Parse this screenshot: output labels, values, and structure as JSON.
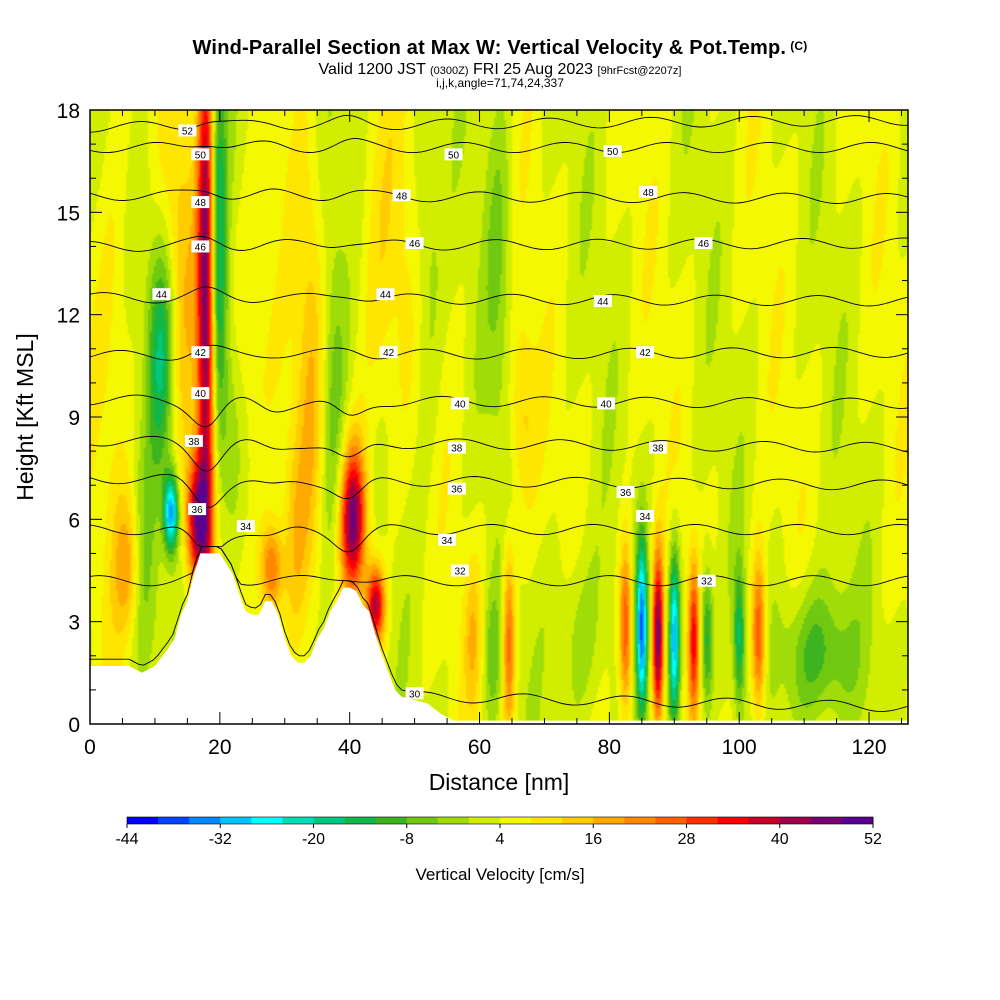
{
  "title": {
    "main": "Wind-Parallel Section at Max W: Vertical Velocity & Pot.Temp.",
    "copyright": "(C)",
    "valid_prefix": "Valid 1200 JST",
    "valid_utc": "(0300Z)",
    "valid_date": "FRI 25 Aug 2023",
    "forecast": "[9hrFcst@2207z]",
    "indices": "i,j,k,angle=71,74,24,337"
  },
  "chart_data": {
    "type": "heatmap",
    "xlabel": "Distance [nm]",
    "ylabel": "Height [Kft MSL]",
    "xlim": [
      0,
      126
    ],
    "ylim": [
      0,
      18
    ],
    "x_ticks": [
      0,
      20,
      40,
      60,
      80,
      100,
      120
    ],
    "y_ticks": [
      0,
      3,
      6,
      9,
      12,
      15,
      18
    ],
    "colorbar": {
      "title": "Vertical Velocity [cm/s]",
      "labels": [
        -44,
        -32,
        -20,
        -8,
        4,
        16,
        28,
        40,
        52
      ],
      "min": -48,
      "max": 52,
      "colors": [
        "#0000ff",
        "#0044ff",
        "#0088ff",
        "#00c4ff",
        "#00ffff",
        "#00dcb4",
        "#00c880",
        "#10b84a",
        "#3cb420",
        "#70c810",
        "#a0dc08",
        "#d2ee00",
        "#f4f800",
        "#ffe600",
        "#ffcc00",
        "#ffaa00",
        "#ff8800",
        "#ff6000",
        "#ff3000",
        "#ff0000",
        "#c80028",
        "#a0004a",
        "#780070",
        "#5a0090"
      ]
    },
    "terrain_profile": [
      [
        0,
        1.7
      ],
      [
        6,
        1.7
      ],
      [
        8,
        1.5
      ],
      [
        10,
        1.7
      ],
      [
        12,
        2.2
      ],
      [
        13,
        2.5
      ],
      [
        14,
        3.2
      ],
      [
        15,
        3.6
      ],
      [
        16,
        4.4
      ],
      [
        17,
        5.0
      ],
      [
        20,
        5.0
      ],
      [
        21,
        4.7
      ],
      [
        22,
        4.4
      ],
      [
        23,
        3.8
      ],
      [
        24,
        3.3
      ],
      [
        25,
        3.2
      ],
      [
        26,
        3.2
      ],
      [
        27,
        3.6
      ],
      [
        28,
        3.6
      ],
      [
        29,
        3.2
      ],
      [
        30,
        2.5
      ],
      [
        31,
        2.0
      ],
      [
        32,
        1.8
      ],
      [
        33,
        1.8
      ],
      [
        34,
        2.0
      ],
      [
        35,
        2.5
      ],
      [
        36,
        2.8
      ],
      [
        37,
        3.3
      ],
      [
        38,
        3.6
      ],
      [
        39,
        4.0
      ],
      [
        40,
        4.0
      ],
      [
        41,
        3.9
      ],
      [
        42,
        3.5
      ],
      [
        43,
        3.3
      ],
      [
        44,
        2.6
      ],
      [
        45,
        2.0
      ],
      [
        46,
        1.5
      ],
      [
        47,
        1.0
      ],
      [
        48,
        0.8
      ],
      [
        50,
        0.7
      ],
      [
        52,
        0.6
      ],
      [
        54,
        0.3
      ],
      [
        56,
        0.1
      ],
      [
        126,
        0.1
      ]
    ],
    "updraft_cells": [
      {
        "x": 18.0,
        "y": 13,
        "sx": 1.0,
        "sy": 6.0,
        "w": 48
      },
      {
        "x": 16.5,
        "y": 6.0,
        "sx": 1.2,
        "sy": 1.3,
        "w": 38
      },
      {
        "x": 40.5,
        "y": 6.0,
        "sx": 1.4,
        "sy": 1.5,
        "w": 44
      },
      {
        "x": 44.0,
        "y": 3.5,
        "sx": 1.0,
        "sy": 0.8,
        "w": 38
      },
      {
        "x": 28.0,
        "y": 4.5,
        "sx": 1.2,
        "sy": 1.0,
        "w": 24
      },
      {
        "x": 31.5,
        "y": 5.5,
        "sx": 1.5,
        "sy": 2.5,
        "w": 12
      },
      {
        "x": 34.0,
        "y": 10,
        "sx": 1.5,
        "sy": 4.0,
        "w": 10
      },
      {
        "x": 25.0,
        "y": 11,
        "sx": 3.0,
        "sy": 3.0,
        "w": 8
      },
      {
        "x": 45.0,
        "y": 13,
        "sx": 3.0,
        "sy": 4.0,
        "w": 8
      },
      {
        "x": 64.5,
        "y": 2.5,
        "sx": 0.7,
        "sy": 2.0,
        "w": 24
      },
      {
        "x": 66.5,
        "y": 9,
        "sx": 1.5,
        "sy": 2.0,
        "w": 10
      },
      {
        "x": 82.5,
        "y": 2.8,
        "sx": 0.7,
        "sy": 1.8,
        "w": 28
      },
      {
        "x": 87.5,
        "y": 2.5,
        "sx": 0.6,
        "sy": 1.8,
        "w": 44
      },
      {
        "x": 93.0,
        "y": 2.5,
        "sx": 0.6,
        "sy": 1.6,
        "w": 28
      },
      {
        "x": 103.0,
        "y": 2.5,
        "sx": 0.8,
        "sy": 1.7,
        "w": 28
      },
      {
        "x": 59.0,
        "y": 2.5,
        "sx": 1.0,
        "sy": 1.5,
        "w": 10
      },
      {
        "x": 6.0,
        "y": 4.5,
        "sx": 1.5,
        "sy": 1.5,
        "w": 16
      },
      {
        "x": 14.0,
        "y": 13,
        "sx": 2.0,
        "sy": 4.0,
        "w": 10
      },
      {
        "x": 4.0,
        "y": 12,
        "sx": 2.0,
        "sy": 5.0,
        "w": 6
      }
    ],
    "downdraft_cells": [
      {
        "x": 12.5,
        "y": 6.2,
        "sx": 0.8,
        "sy": 0.8,
        "w": -38
      },
      {
        "x": 11.0,
        "y": 11,
        "sx": 1.5,
        "sy": 2.5,
        "w": -22
      },
      {
        "x": 19.5,
        "y": 14,
        "sx": 1.0,
        "sy": 4.5,
        "w": -28
      },
      {
        "x": 37.5,
        "y": 9,
        "sx": 1.5,
        "sy": 4.0,
        "w": -12
      },
      {
        "x": 21.5,
        "y": 9,
        "sx": 1.5,
        "sy": 2.5,
        "w": -10
      },
      {
        "x": 85.0,
        "y": 2.8,
        "sx": 0.6,
        "sy": 1.8,
        "w": -40
      },
      {
        "x": 90.0,
        "y": 2.6,
        "sx": 0.6,
        "sy": 1.8,
        "w": -36
      },
      {
        "x": 95.0,
        "y": 2.5,
        "sx": 0.7,
        "sy": 1.5,
        "w": -20
      },
      {
        "x": 100.0,
        "y": 2.5,
        "sx": 0.6,
        "sy": 1.5,
        "w": -20
      },
      {
        "x": 112.0,
        "y": 2.0,
        "sx": 4.0,
        "sy": 1.5,
        "w": -16
      },
      {
        "x": 75.0,
        "y": 2.5,
        "sx": 3.0,
        "sy": 2.0,
        "w": -8
      },
      {
        "x": 62.0,
        "y": 2.0,
        "sx": 1.0,
        "sy": 1.5,
        "w": -10
      },
      {
        "x": 8.0,
        "y": 4.0,
        "sx": 1.5,
        "sy": 2.5,
        "w": -10
      },
      {
        "x": 52.0,
        "y": 14,
        "sx": 1.5,
        "sy": 4.0,
        "w": -8
      },
      {
        "x": 63.0,
        "y": 14,
        "sx": 1.5,
        "sy": 4.0,
        "w": -8
      }
    ],
    "potential_temperature_levels": [
      {
        "value": 30,
        "z_west": 1.0,
        "z_east": 0.5
      },
      {
        "value": 32,
        "z_west": 4.2,
        "z_east": 4.2
      },
      {
        "value": 34,
        "z_west": 5.7,
        "z_east": 5.7
      },
      {
        "value": 36,
        "z_west": 7.2,
        "z_east": 7.0
      },
      {
        "value": 38,
        "z_west": 8.3,
        "z_east": 8.1
      },
      {
        "value": 40,
        "z_west": 9.5,
        "z_east": 9.4
      },
      {
        "value": 42,
        "z_west": 10.8,
        "z_east": 10.9
      },
      {
        "value": 44,
        "z_west": 12.5,
        "z_east": 12.4
      },
      {
        "value": 46,
        "z_west": 14.0,
        "z_east": 14.1
      },
      {
        "value": 48,
        "z_west": 15.5,
        "z_east": 15.4
      },
      {
        "value": 50,
        "z_west": 16.9,
        "z_east": 16.9
      },
      {
        "value": 52,
        "z_west": 17.5,
        "z_east": 17.7
      }
    ],
    "contour_labels": [
      {
        "text": "52",
        "x": 15.0,
        "y": 17.4
      },
      {
        "text": "50",
        "x": 17.0,
        "y": 16.7
      },
      {
        "text": "50",
        "x": 56.0,
        "y": 16.7
      },
      {
        "text": "50",
        "x": 80.5,
        "y": 16.8
      },
      {
        "text": "48",
        "x": 17.0,
        "y": 15.3
      },
      {
        "text": "48",
        "x": 48.0,
        "y": 15.5
      },
      {
        "text": "48",
        "x": 86.0,
        "y": 15.6
      },
      {
        "text": "46",
        "x": 17.0,
        "y": 14.0
      },
      {
        "text": "46",
        "x": 50.0,
        "y": 14.1
      },
      {
        "text": "46",
        "x": 94.5,
        "y": 14.1
      },
      {
        "text": "44",
        "x": 11.0,
        "y": 12.6
      },
      {
        "text": "44",
        "x": 45.5,
        "y": 12.6
      },
      {
        "text": "44",
        "x": 79.0,
        "y": 12.4
      },
      {
        "text": "42",
        "x": 17.0,
        "y": 10.9
      },
      {
        "text": "42",
        "x": 46.0,
        "y": 10.9
      },
      {
        "text": "42",
        "x": 85.5,
        "y": 10.9
      },
      {
        "text": "40",
        "x": 17.0,
        "y": 9.7
      },
      {
        "text": "40",
        "x": 57.0,
        "y": 9.4
      },
      {
        "text": "40",
        "x": 79.5,
        "y": 9.4
      },
      {
        "text": "38",
        "x": 16.0,
        "y": 8.3
      },
      {
        "text": "38",
        "x": 56.5,
        "y": 8.1
      },
      {
        "text": "38",
        "x": 87.5,
        "y": 8.1
      },
      {
        "text": "36",
        "x": 16.5,
        "y": 6.3
      },
      {
        "text": "36",
        "x": 56.5,
        "y": 6.9
      },
      {
        "text": "36",
        "x": 82.5,
        "y": 6.8
      },
      {
        "text": "34",
        "x": 24.0,
        "y": 5.8
      },
      {
        "text": "34",
        "x": 55.0,
        "y": 5.4
      },
      {
        "text": "34",
        "x": 85.5,
        "y": 6.1
      },
      {
        "text": "32",
        "x": 57.0,
        "y": 4.5
      },
      {
        "text": "32",
        "x": 95.0,
        "y": 4.2
      },
      {
        "text": "30",
        "x": 50.0,
        "y": 0.9
      }
    ]
  }
}
